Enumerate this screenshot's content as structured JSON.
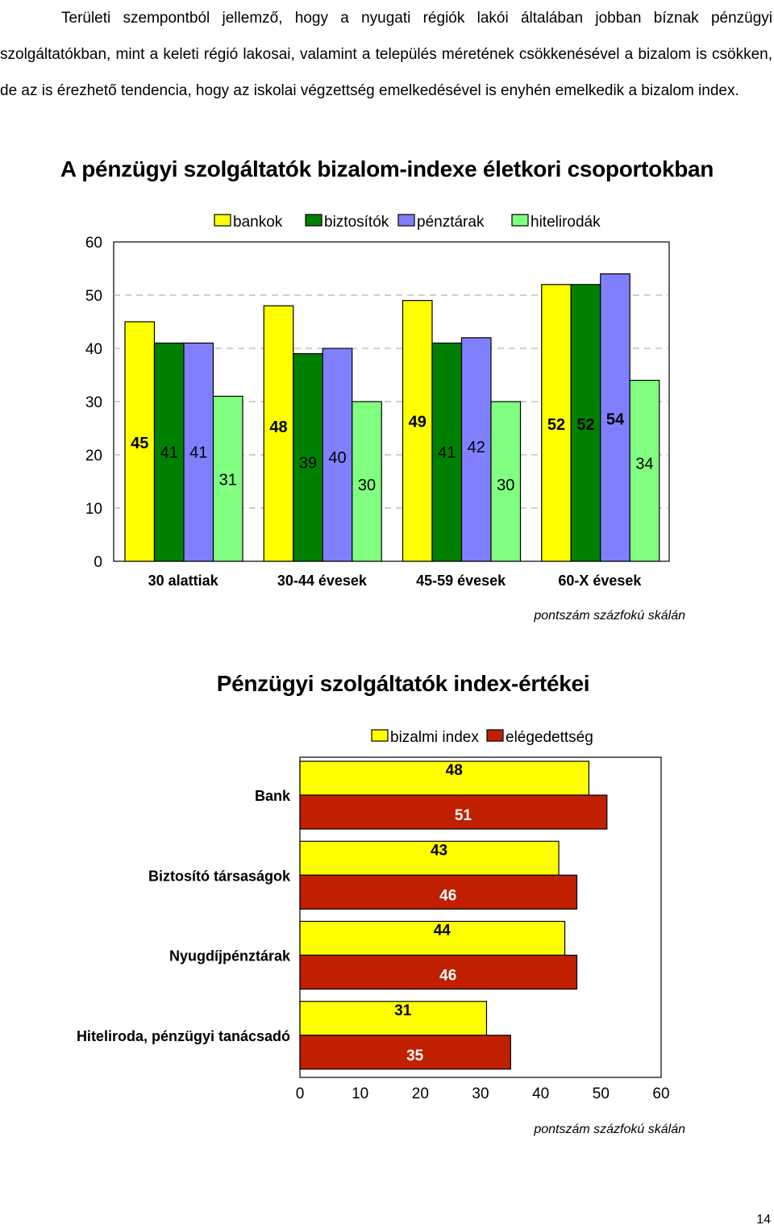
{
  "paragraph": "Területi szempontból jellemző, hogy a nyugati régiók lakói általában jobban bíznak pénzügyi szolgáltatókban, mint a keleti régió lakosai, valamint a település méretének csökkenésével a bizalom is csökken, de az is érezhető tendencia, hogy az iskolai végzettség emelkedésével is enyhén emelkedik a bizalom index.",
  "chart1": {
    "title": "A pénzügyi szolgáltatók bizalom-indexe életkori csoportokban",
    "note": "pontszám százfokú skálán",
    "chart_data": {
      "type": "bar",
      "title": "A pénzügyi szolgáltatók bizalom-indexe életkori csoportokban",
      "categories": [
        "30 alattiak",
        "30-44 évesek",
        "45-59 évesek",
        "60-X évesek"
      ],
      "series": [
        {
          "name": "bankok",
          "color": "#ffff00",
          "values": [
            45,
            48,
            49,
            52
          ]
        },
        {
          "name": "biztosítók",
          "color": "#008000",
          "values": [
            41,
            39,
            41,
            52
          ]
        },
        {
          "name": "pénztárak",
          "color": "#8080ff",
          "values": [
            41,
            40,
            42,
            54
          ]
        },
        {
          "name": "hitelirodák",
          "color": "#80ff80",
          "values": [
            31,
            30,
            30,
            34
          ]
        }
      ],
      "ylim": [
        0,
        60
      ],
      "yticks": [
        "0",
        "10",
        "20",
        "30",
        "40",
        "50",
        "60"
      ],
      "grid": true,
      "legend": "top"
    }
  },
  "chart2": {
    "title": "Pénzügyi szolgáltatók index-értékei",
    "note": "pontszám százfokú skálán",
    "chart_data": {
      "type": "bar",
      "orientation": "horizontal",
      "title": "Pénzügyi szolgáltatók index-értékei",
      "categories": [
        "Bank",
        "Biztosító társaságok",
        "Nyugdíjpénztárak",
        "Hiteliroda, pénzügyi tanácsadó"
      ],
      "series": [
        {
          "name": "bizalmi index",
          "color": "#ffff00",
          "values": [
            48,
            43,
            44,
            31
          ]
        },
        {
          "name": "elégedettség",
          "color": "#c02000",
          "values": [
            51,
            46,
            46,
            35
          ]
        }
      ],
      "xlim": [
        0,
        60
      ],
      "xticks": [
        "0",
        "10",
        "20",
        "30",
        "40",
        "50",
        "60"
      ],
      "legend": "top"
    }
  },
  "page_number": "14"
}
